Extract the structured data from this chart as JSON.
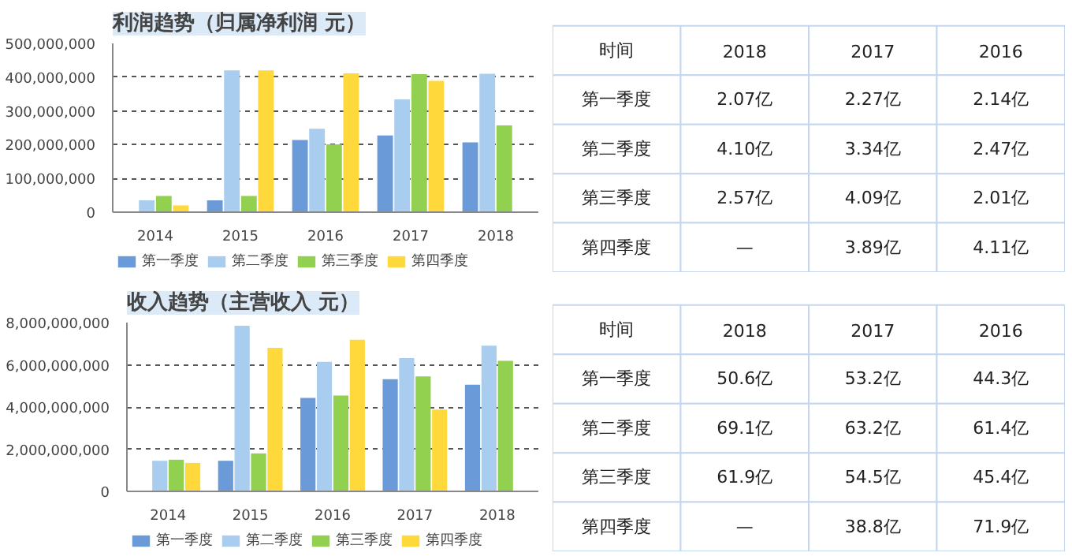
{
  "chart_data": [
    {
      "type": "bar",
      "title": "利润趋势（归属净利润 元）",
      "categories": [
        "2014",
        "2015",
        "2016",
        "2017",
        "2018"
      ],
      "series": [
        {
          "name": "第一季度",
          "color": "#6a9ad8",
          "values": [
            null,
            35000000,
            214000000,
            227000000,
            207000000
          ]
        },
        {
          "name": "第二季度",
          "color": "#a9cdee",
          "values": [
            35000000,
            420000000,
            247000000,
            334000000,
            410000000
          ]
        },
        {
          "name": "第三季度",
          "color": "#92d050",
          "values": [
            48000000,
            48000000,
            201000000,
            409000000,
            257000000
          ]
        },
        {
          "name": "第四季度",
          "color": "#ffd93b",
          "values": [
            20000000,
            420000000,
            411000000,
            389000000,
            null
          ]
        }
      ],
      "ylim": [
        0,
        500000000
      ],
      "yticks": [
        0,
        {
          "value": 100000000,
          "label": "100,000,000"
        },
        {
          "value": 200000000,
          "label": "200,000,000"
        },
        {
          "value": 300000000,
          "label": "300,000,000"
        },
        {
          "value": 400000000,
          "label": "400,000,000"
        },
        {
          "value": 500000000,
          "label": "500,000,000"
        }
      ],
      "grid": "y",
      "legend": "bottom"
    },
    {
      "type": "other",
      "categories": [
        "时间",
        "2018",
        "2017",
        "2016"
      ],
      "y_categories": [
        "第一季度",
        "第二季度",
        "第三季度",
        "第四季度"
      ],
      "cell_labels": [
        [
          "2.07亿",
          "2.27亿",
          "2.14亿"
        ],
        [
          "4.10亿",
          "3.34亿",
          "2.47亿"
        ],
        [
          "2.57亿",
          "4.09亿",
          "2.01亿"
        ],
        [
          "—",
          "3.89亿",
          "4.11亿"
        ]
      ]
    },
    {
      "type": "bar",
      "title": "收入趋势（主营收入 元）",
      "categories": [
        "2014",
        "2015",
        "2016",
        "2017",
        "2018"
      ],
      "series": [
        {
          "name": "第一季度",
          "color": "#6a9ad8",
          "values": [
            null,
            1450000000,
            4430000000,
            5320000000,
            5060000000
          ]
        },
        {
          "name": "第二季度",
          "color": "#a9cdee",
          "values": [
            1450000000,
            7850000000,
            6140000000,
            6320000000,
            6910000000
          ]
        },
        {
          "name": "第三季度",
          "color": "#92d050",
          "values": [
            1500000000,
            1800000000,
            4540000000,
            5450000000,
            6190000000
          ]
        },
        {
          "name": "第四季度",
          "color": "#ffd93b",
          "values": [
            1350000000,
            6800000000,
            7190000000,
            3880000000,
            null
          ]
        }
      ],
      "ylim": [
        0,
        8000000000
      ],
      "yticks": [
        0,
        {
          "value": 2000000000,
          "label": "2,000,000,000"
        },
        {
          "value": 4000000000,
          "label": "4,000,000,000"
        },
        {
          "value": 6000000000,
          "label": "6,000,000,000"
        },
        {
          "value": 8000000000,
          "label": "8,000,000,000"
        }
      ],
      "grid": "y",
      "legend": "bottom"
    },
    {
      "type": "other",
      "categories": [
        "时间",
        "2018",
        "2017",
        "2016"
      ],
      "y_categories": [
        "第一季度",
        "第二季度",
        "第三季度",
        "第四季度"
      ],
      "cell_labels": [
        [
          "50.6亿",
          "53.2亿",
          "44.3亿"
        ],
        [
          "69.1亿",
          "63.2亿",
          "61.4亿"
        ],
        [
          "61.9亿",
          "54.5亿",
          "45.4亿"
        ],
        [
          "—",
          "38.8亿",
          "71.9亿"
        ]
      ]
    }
  ]
}
